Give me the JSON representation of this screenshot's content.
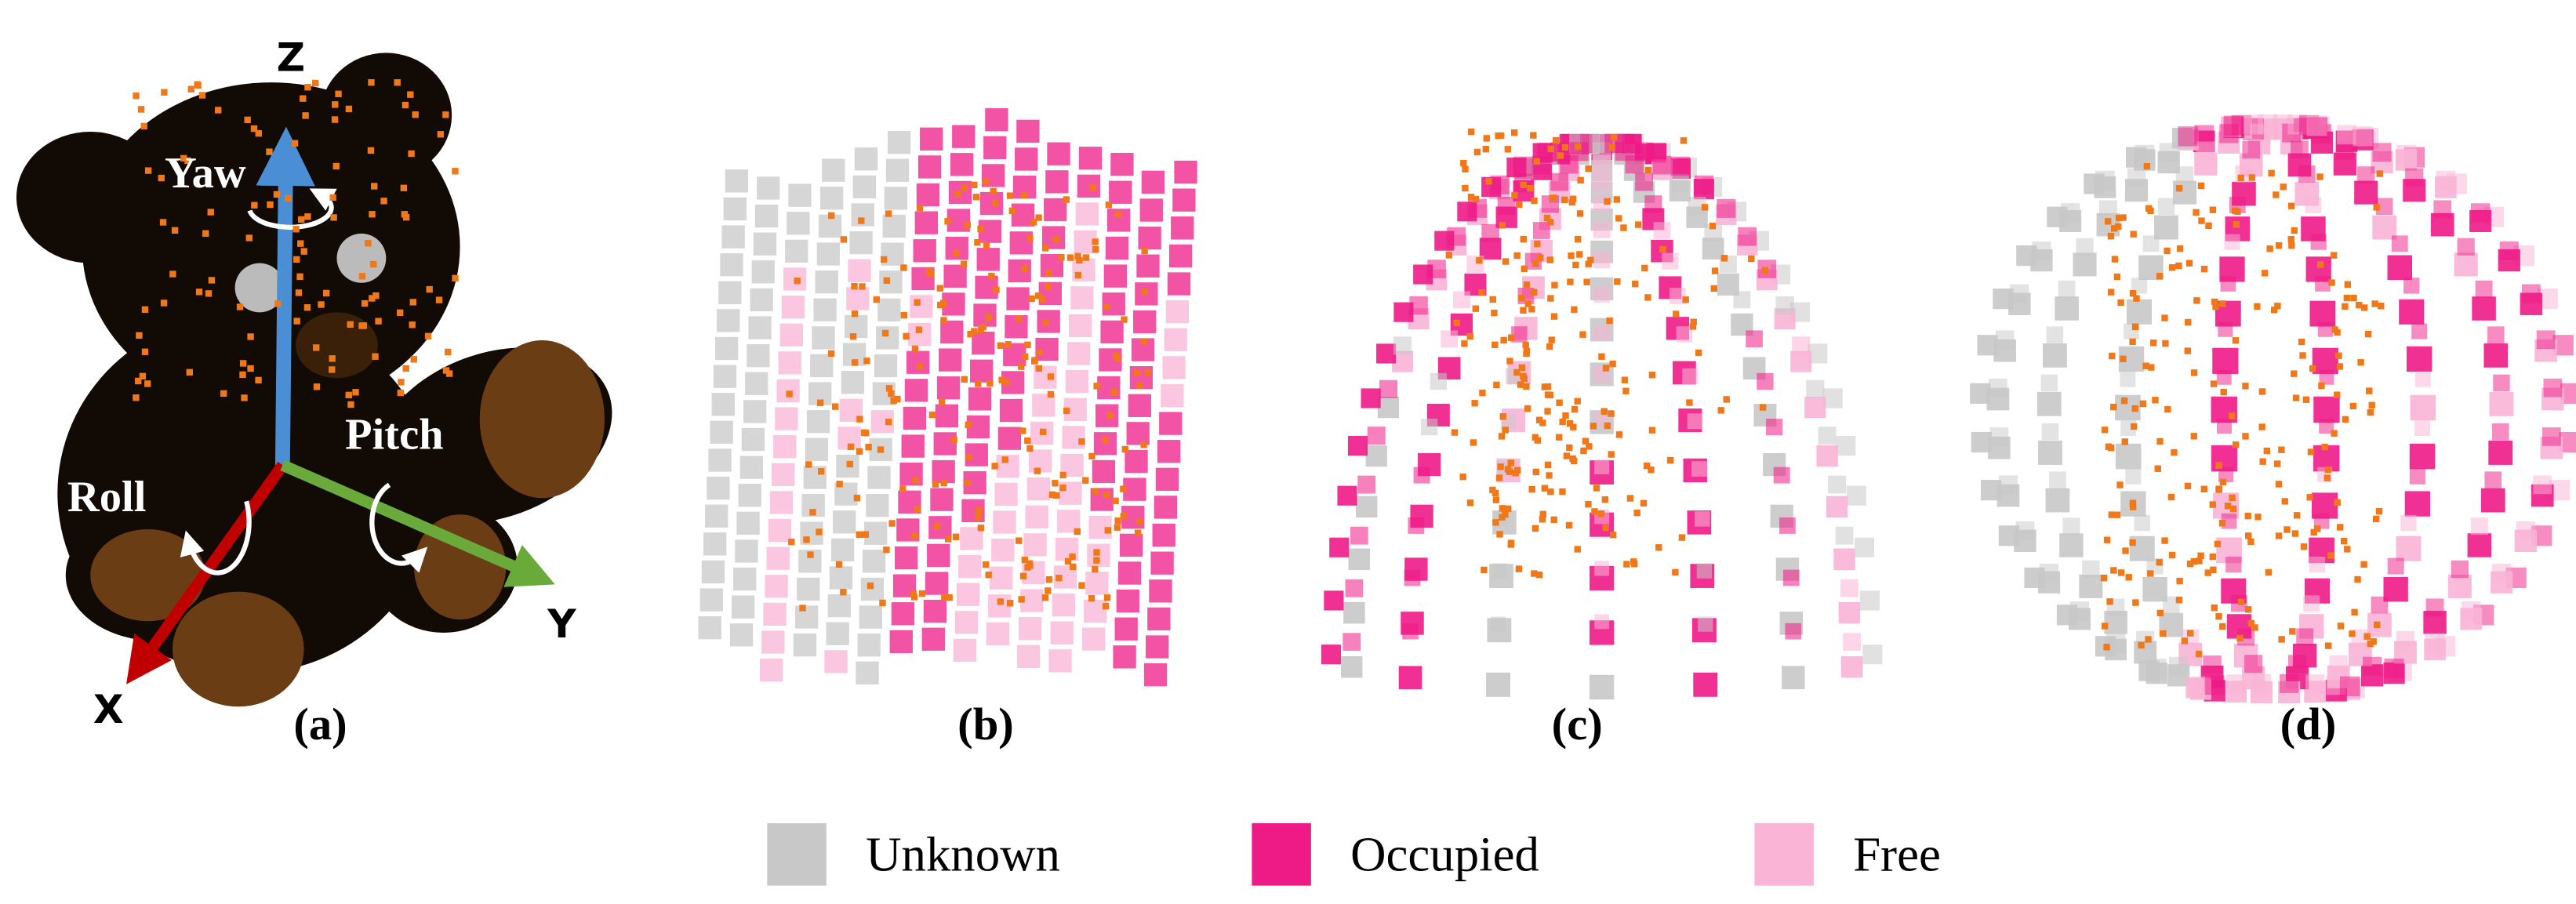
{
  "panel_a": {
    "axes": {
      "z": "Z",
      "x": "X",
      "y": "Y"
    },
    "rotations": {
      "yaw": "Yaw",
      "pitch": "Pitch",
      "roll": "Roll"
    }
  },
  "captions": [
    "(a)",
    "(b)",
    "(c)",
    "(d)"
  ],
  "legend": [
    {
      "label": "Unknown",
      "color": "#c8c8c8"
    },
    {
      "label": "Occupied",
      "color": "#ee1a86"
    },
    {
      "label": "Free",
      "color": "#f9b4d6"
    }
  ]
}
